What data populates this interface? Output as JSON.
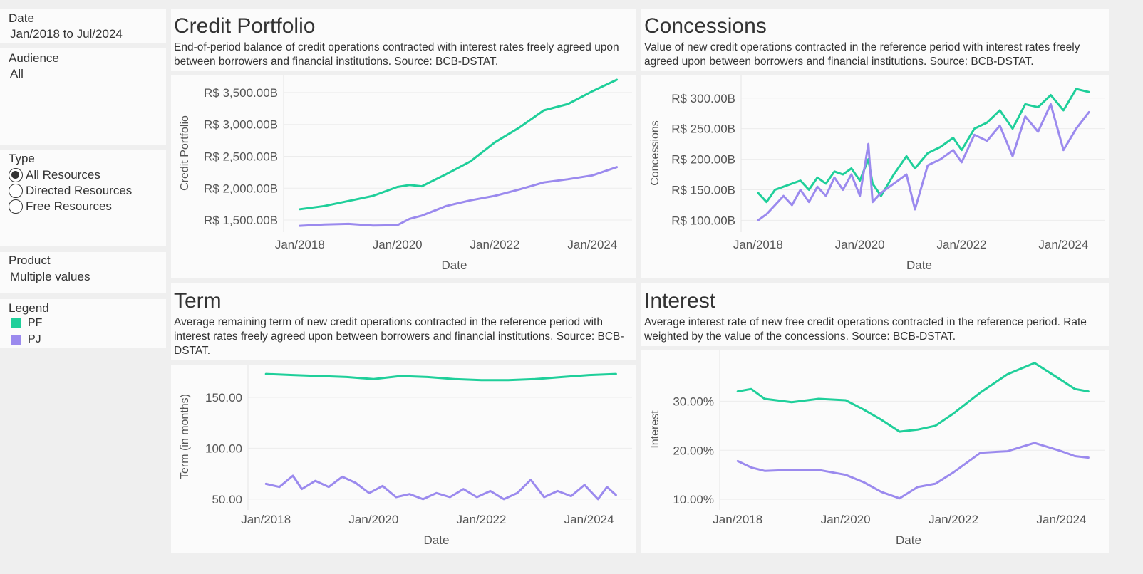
{
  "filters": {
    "date": {
      "label": "Date",
      "value": "Jan/2018 to Jul/2024"
    },
    "audience": {
      "label": "Audience",
      "value": "All"
    },
    "type": {
      "label": "Type",
      "options": [
        "All Resources",
        "Directed Resources",
        "Free Resources"
      ],
      "selected": "All Resources"
    },
    "product": {
      "label": "Product",
      "value": "Multiple values"
    }
  },
  "legend": {
    "label": "Legend",
    "items": [
      {
        "name": "PF",
        "color": "#1fcf9a"
      },
      {
        "name": "PJ",
        "color": "#9b8aee"
      }
    ]
  },
  "panels": {
    "credit": {
      "title": "Credit Portfolio",
      "description": "End-of-period balance of credit operations contracted with interest rates freely agreed upon between borrowers and financial institutions. Source: BCB-DSTAT."
    },
    "concessions": {
      "title": "Concessions",
      "description": "Value of new credit operations contracted in the reference period with interest rates freely agreed upon between borrowers and financial institutions. Source: BCB-DSTAT."
    },
    "term": {
      "title": "Term",
      "description": "Average remaining term of new credit operations contracted in the reference period with interest rates freely agreed upon between borrowers and financial institutions. Source: BCB-DSTAT."
    },
    "interest": {
      "title": "Interest",
      "description": "Average interest rate of new free credit operations contracted in the reference period. Rate weighted by the value of the concessions. Source: BCB-DSTAT."
    }
  },
  "chart_data": [
    {
      "id": "credit",
      "type": "line",
      "xlabel": "Date",
      "ylabel": "Credit Portfolio",
      "x_range": [
        "2018-01",
        "2024-07"
      ],
      "x_ticks": [
        "Jan/2018",
        "Jan/2020",
        "Jan/2022",
        "Jan/2024"
      ],
      "ylim": [
        1400,
        3700
      ],
      "y_ticks": [
        1500,
        2000,
        2500,
        3000,
        3500
      ],
      "y_tick_labels": [
        "R$ 1,500.00B",
        "R$ 2,000.00B",
        "R$ 2,500.00B",
        "R$ 3,000.00B",
        "R$ 3,500.00B"
      ],
      "series": [
        {
          "name": "PF",
          "color": "#1fcf9a",
          "points": [
            [
              "2018-01",
              1670
            ],
            [
              "2018-07",
              1720
            ],
            [
              "2019-01",
              1800
            ],
            [
              "2019-07",
              1880
            ],
            [
              "2020-01",
              2020
            ],
            [
              "2020-04",
              2050
            ],
            [
              "2020-07",
              2030
            ],
            [
              "2021-01",
              2220
            ],
            [
              "2021-07",
              2420
            ],
            [
              "2022-01",
              2720
            ],
            [
              "2022-07",
              2950
            ],
            [
              "2023-01",
              3220
            ],
            [
              "2023-07",
              3320
            ],
            [
              "2024-01",
              3520
            ],
            [
              "2024-07",
              3700
            ]
          ]
        },
        {
          "name": "PJ",
          "color": "#9b8aee",
          "points": [
            [
              "2018-01",
              1410
            ],
            [
              "2018-07",
              1430
            ],
            [
              "2019-01",
              1440
            ],
            [
              "2019-07",
              1415
            ],
            [
              "2020-01",
              1420
            ],
            [
              "2020-04",
              1520
            ],
            [
              "2020-07",
              1570
            ],
            [
              "2021-01",
              1720
            ],
            [
              "2021-07",
              1810
            ],
            [
              "2022-01",
              1880
            ],
            [
              "2022-07",
              1980
            ],
            [
              "2023-01",
              2090
            ],
            [
              "2023-07",
              2140
            ],
            [
              "2024-01",
              2200
            ],
            [
              "2024-07",
              2330
            ]
          ]
        }
      ]
    },
    {
      "id": "concessions",
      "type": "line",
      "xlabel": "Date",
      "ylabel": "Concessions",
      "x_range": [
        "2018-01",
        "2024-07"
      ],
      "x_ticks": [
        "Jan/2018",
        "Jan/2020",
        "Jan/2022",
        "Jan/2024"
      ],
      "ylim": [
        90,
        330
      ],
      "y_ticks": [
        100,
        150,
        200,
        250,
        300
      ],
      "y_tick_labels": [
        "R$ 100.00B",
        "R$ 150.00B",
        "R$ 200.00B",
        "R$ 250.00B",
        "R$ 300.00B"
      ],
      "series": [
        {
          "name": "PF",
          "color": "#1fcf9a",
          "points": [
            [
              "2018-01",
              145
            ],
            [
              "2018-03",
              130
            ],
            [
              "2018-05",
              150
            ],
            [
              "2018-07",
              155
            ],
            [
              "2018-09",
              160
            ],
            [
              "2018-11",
              165
            ],
            [
              "2019-01",
              150
            ],
            [
              "2019-03",
              170
            ],
            [
              "2019-05",
              160
            ],
            [
              "2019-07",
              180
            ],
            [
              "2019-09",
              175
            ],
            [
              "2019-11",
              185
            ],
            [
              "2020-01",
              165
            ],
            [
              "2020-03",
              200
            ],
            [
              "2020-04",
              160
            ],
            [
              "2020-06",
              140
            ],
            [
              "2020-09",
              175
            ],
            [
              "2020-12",
              205
            ],
            [
              "2021-02",
              185
            ],
            [
              "2021-05",
              210
            ],
            [
              "2021-08",
              220
            ],
            [
              "2021-11",
              235
            ],
            [
              "2022-01",
              215
            ],
            [
              "2022-04",
              250
            ],
            [
              "2022-07",
              260
            ],
            [
              "2022-10",
              280
            ],
            [
              "2023-01",
              250
            ],
            [
              "2023-04",
              290
            ],
            [
              "2023-07",
              285
            ],
            [
              "2023-10",
              305
            ],
            [
              "2024-01",
              280
            ],
            [
              "2024-04",
              315
            ],
            [
              "2024-07",
              310
            ]
          ]
        },
        {
          "name": "PJ",
          "color": "#9b8aee",
          "points": [
            [
              "2018-01",
              100
            ],
            [
              "2018-03",
              110
            ],
            [
              "2018-05",
              125
            ],
            [
              "2018-07",
              140
            ],
            [
              "2018-09",
              125
            ],
            [
              "2018-11",
              150
            ],
            [
              "2019-01",
              130
            ],
            [
              "2019-03",
              155
            ],
            [
              "2019-05",
              140
            ],
            [
              "2019-07",
              170
            ],
            [
              "2019-09",
              150
            ],
            [
              "2019-11",
              175
            ],
            [
              "2020-01",
              140
            ],
            [
              "2020-03",
              225
            ],
            [
              "2020-04",
              130
            ],
            [
              "2020-06",
              145
            ],
            [
              "2020-09",
              160
            ],
            [
              "2020-12",
              175
            ],
            [
              "2021-02",
              118
            ],
            [
              "2021-05",
              190
            ],
            [
              "2021-08",
              200
            ],
            [
              "2021-11",
              215
            ],
            [
              "2022-01",
              195
            ],
            [
              "2022-04",
              240
            ],
            [
              "2022-07",
              230
            ],
            [
              "2022-10",
              255
            ],
            [
              "2023-01",
              205
            ],
            [
              "2023-04",
              270
            ],
            [
              "2023-07",
              245
            ],
            [
              "2023-10",
              290
            ],
            [
              "2024-01",
              215
            ],
            [
              "2024-04",
              250
            ],
            [
              "2024-07",
              277
            ]
          ]
        }
      ]
    },
    {
      "id": "term",
      "type": "line",
      "xlabel": "Date",
      "ylabel": "Term (in months)",
      "x_range": [
        "2018-01",
        "2024-07"
      ],
      "x_ticks": [
        "Jan/2018",
        "Jan/2020",
        "Jan/2022",
        "Jan/2024"
      ],
      "ylim": [
        45,
        178
      ],
      "y_ticks": [
        50,
        100,
        150
      ],
      "y_tick_labels": [
        "50.00",
        "100.00",
        "150.00"
      ],
      "series": [
        {
          "name": "PF",
          "color": "#1fcf9a",
          "points": [
            [
              "2018-01",
              173
            ],
            [
              "2018-07",
              172
            ],
            [
              "2019-01",
              171
            ],
            [
              "2019-07",
              170
            ],
            [
              "2020-01",
              168
            ],
            [
              "2020-07",
              171
            ],
            [
              "2021-01",
              170
            ],
            [
              "2021-07",
              168
            ],
            [
              "2022-01",
              167
            ],
            [
              "2022-07",
              167
            ],
            [
              "2023-01",
              168
            ],
            [
              "2023-07",
              170
            ],
            [
              "2024-01",
              172
            ],
            [
              "2024-07",
              173
            ]
          ]
        },
        {
          "name": "PJ",
          "color": "#9b8aee",
          "points": [
            [
              "2018-01",
              65
            ],
            [
              "2018-04",
              62
            ],
            [
              "2018-07",
              73
            ],
            [
              "2018-09",
              60
            ],
            [
              "2018-12",
              68
            ],
            [
              "2019-03",
              62
            ],
            [
              "2019-06",
              72
            ],
            [
              "2019-09",
              66
            ],
            [
              "2019-12",
              56
            ],
            [
              "2020-03",
              63
            ],
            [
              "2020-06",
              52
            ],
            [
              "2020-09",
              55
            ],
            [
              "2020-12",
              50
            ],
            [
              "2021-03",
              56
            ],
            [
              "2021-06",
              52
            ],
            [
              "2021-09",
              60
            ],
            [
              "2021-12",
              52
            ],
            [
              "2022-03",
              58
            ],
            [
              "2022-06",
              50
            ],
            [
              "2022-09",
              56
            ],
            [
              "2022-12",
              69
            ],
            [
              "2023-03",
              52
            ],
            [
              "2023-06",
              58
            ],
            [
              "2023-09",
              53
            ],
            [
              "2023-12",
              64
            ],
            [
              "2024-03",
              50
            ],
            [
              "2024-05",
              62
            ],
            [
              "2024-07",
              54
            ]
          ]
        }
      ]
    },
    {
      "id": "interest",
      "type": "line",
      "xlabel": "Date",
      "ylabel": "Interest",
      "x_range": [
        "2018-01",
        "2024-07"
      ],
      "x_ticks": [
        "Jan/2018",
        "Jan/2020",
        "Jan/2022",
        "Jan/2024"
      ],
      "ylim": [
        0.09,
        0.395
      ],
      "y_ticks": [
        0.1,
        0.2,
        0.3
      ],
      "y_tick_labels": [
        "10.00%",
        "20.00%",
        "30.00%"
      ],
      "series": [
        {
          "name": "PF",
          "color": "#1fcf9a",
          "points": [
            [
              "2018-01",
              0.32
            ],
            [
              "2018-04",
              0.325
            ],
            [
              "2018-07",
              0.305
            ],
            [
              "2019-01",
              0.298
            ],
            [
              "2019-07",
              0.305
            ],
            [
              "2020-01",
              0.302
            ],
            [
              "2020-05",
              0.283
            ],
            [
              "2020-09",
              0.262
            ],
            [
              "2021-01",
              0.238
            ],
            [
              "2021-05",
              0.242
            ],
            [
              "2021-09",
              0.25
            ],
            [
              "2022-01",
              0.275
            ],
            [
              "2022-07",
              0.318
            ],
            [
              "2023-01",
              0.355
            ],
            [
              "2023-07",
              0.378
            ],
            [
              "2024-01",
              0.343
            ],
            [
              "2024-04",
              0.325
            ],
            [
              "2024-07",
              0.32
            ]
          ]
        },
        {
          "name": "PJ",
          "color": "#9b8aee",
          "points": [
            [
              "2018-01",
              0.178
            ],
            [
              "2018-04",
              0.165
            ],
            [
              "2018-07",
              0.158
            ],
            [
              "2019-01",
              0.16
            ],
            [
              "2019-07",
              0.16
            ],
            [
              "2020-01",
              0.15
            ],
            [
              "2020-05",
              0.135
            ],
            [
              "2020-09",
              0.115
            ],
            [
              "2021-01",
              0.102
            ],
            [
              "2021-05",
              0.125
            ],
            [
              "2021-09",
              0.132
            ],
            [
              "2022-01",
              0.155
            ],
            [
              "2022-07",
              0.195
            ],
            [
              "2023-01",
              0.198
            ],
            [
              "2023-07",
              0.215
            ],
            [
              "2024-01",
              0.198
            ],
            [
              "2024-04",
              0.188
            ],
            [
              "2024-07",
              0.185
            ]
          ]
        }
      ]
    }
  ]
}
